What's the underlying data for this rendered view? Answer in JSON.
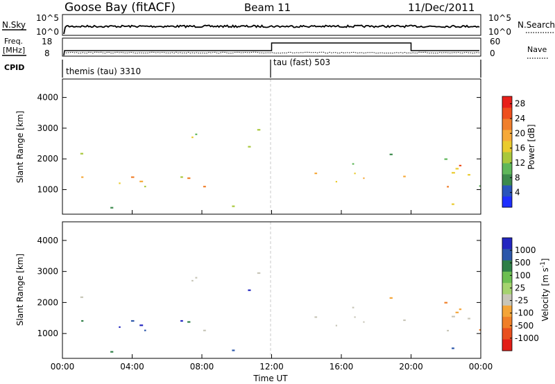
{
  "header": {
    "station": "Goose Bay (fitACF)",
    "beam": "Beam 11",
    "date": "11/Dec/2011"
  },
  "panel_labels": {
    "nsky": "N.Sky",
    "nsky_top": "10^5",
    "nsky_bottom": "10^0",
    "nsearch": "N.Search",
    "nsearch_top": "10^5",
    "nsearch_bottom": "10^0",
    "freq_line1": "Freq.",
    "freq_line2": "[MHz]",
    "freq_top": "18",
    "freq_bottom": "8",
    "nave": "Nave",
    "nave_top": "60",
    "nave_bottom": "0",
    "cpid": "CPID",
    "cpid_mode1": "themis (tau) 3310",
    "cpid_mode2": "tau (fast) 503"
  },
  "colors": {
    "power_scale": [
      "#1f2fff",
      "#2a55bb",
      "#3c8a4c",
      "#5fb75a",
      "#a9c83c",
      "#eacb2e",
      "#f6a93a",
      "#f07f2c",
      "#ee4f1e",
      "#e8201a"
    ],
    "velocity_scale": [
      "#2326c0",
      "#2c57aa",
      "#2f7f47",
      "#6dbf52",
      "#a5d36f",
      "#c8c6b8",
      "#f4a538",
      "#f07f28",
      "#e9501f",
      "#e31e17"
    ]
  },
  "chart_data": [
    {
      "type": "heatmap",
      "panel": "power",
      "ylabel": "Slant Range [km]",
      "y_ticks": [
        1000,
        2000,
        3000,
        4000
      ],
      "ylim": [
        200,
        4600
      ],
      "x_ticks": [
        "00:00",
        "04:00",
        "08:00",
        "12:00",
        "16:00",
        "20:00",
        "00:00"
      ],
      "xlim_hours": [
        0,
        24
      ],
      "colorbar_label": "Power [dB]",
      "colorbar_ticks": [
        "4",
        "8",
        "12",
        "16",
        "20",
        "24",
        "28"
      ],
      "colorbar_range": [
        0,
        30
      ]
    },
    {
      "type": "heatmap",
      "panel": "velocity",
      "ylabel": "Slant Range [km]",
      "y_ticks": [
        1000,
        2000,
        3000,
        4000
      ],
      "ylim": [
        200,
        4600
      ],
      "x_ticks": [
        "00:00",
        "04:00",
        "08:00",
        "12:00",
        "16:00",
        "20:00",
        "00:00"
      ],
      "xlim_hours": [
        0,
        24
      ],
      "xlabel": "Time UT",
      "colorbar_label": "Velocity [m s-1]",
      "colorbar_ticks": [
        "1000",
        "500",
        "100",
        "25",
        "-25",
        "-100",
        "-500",
        "-1000"
      ]
    }
  ]
}
